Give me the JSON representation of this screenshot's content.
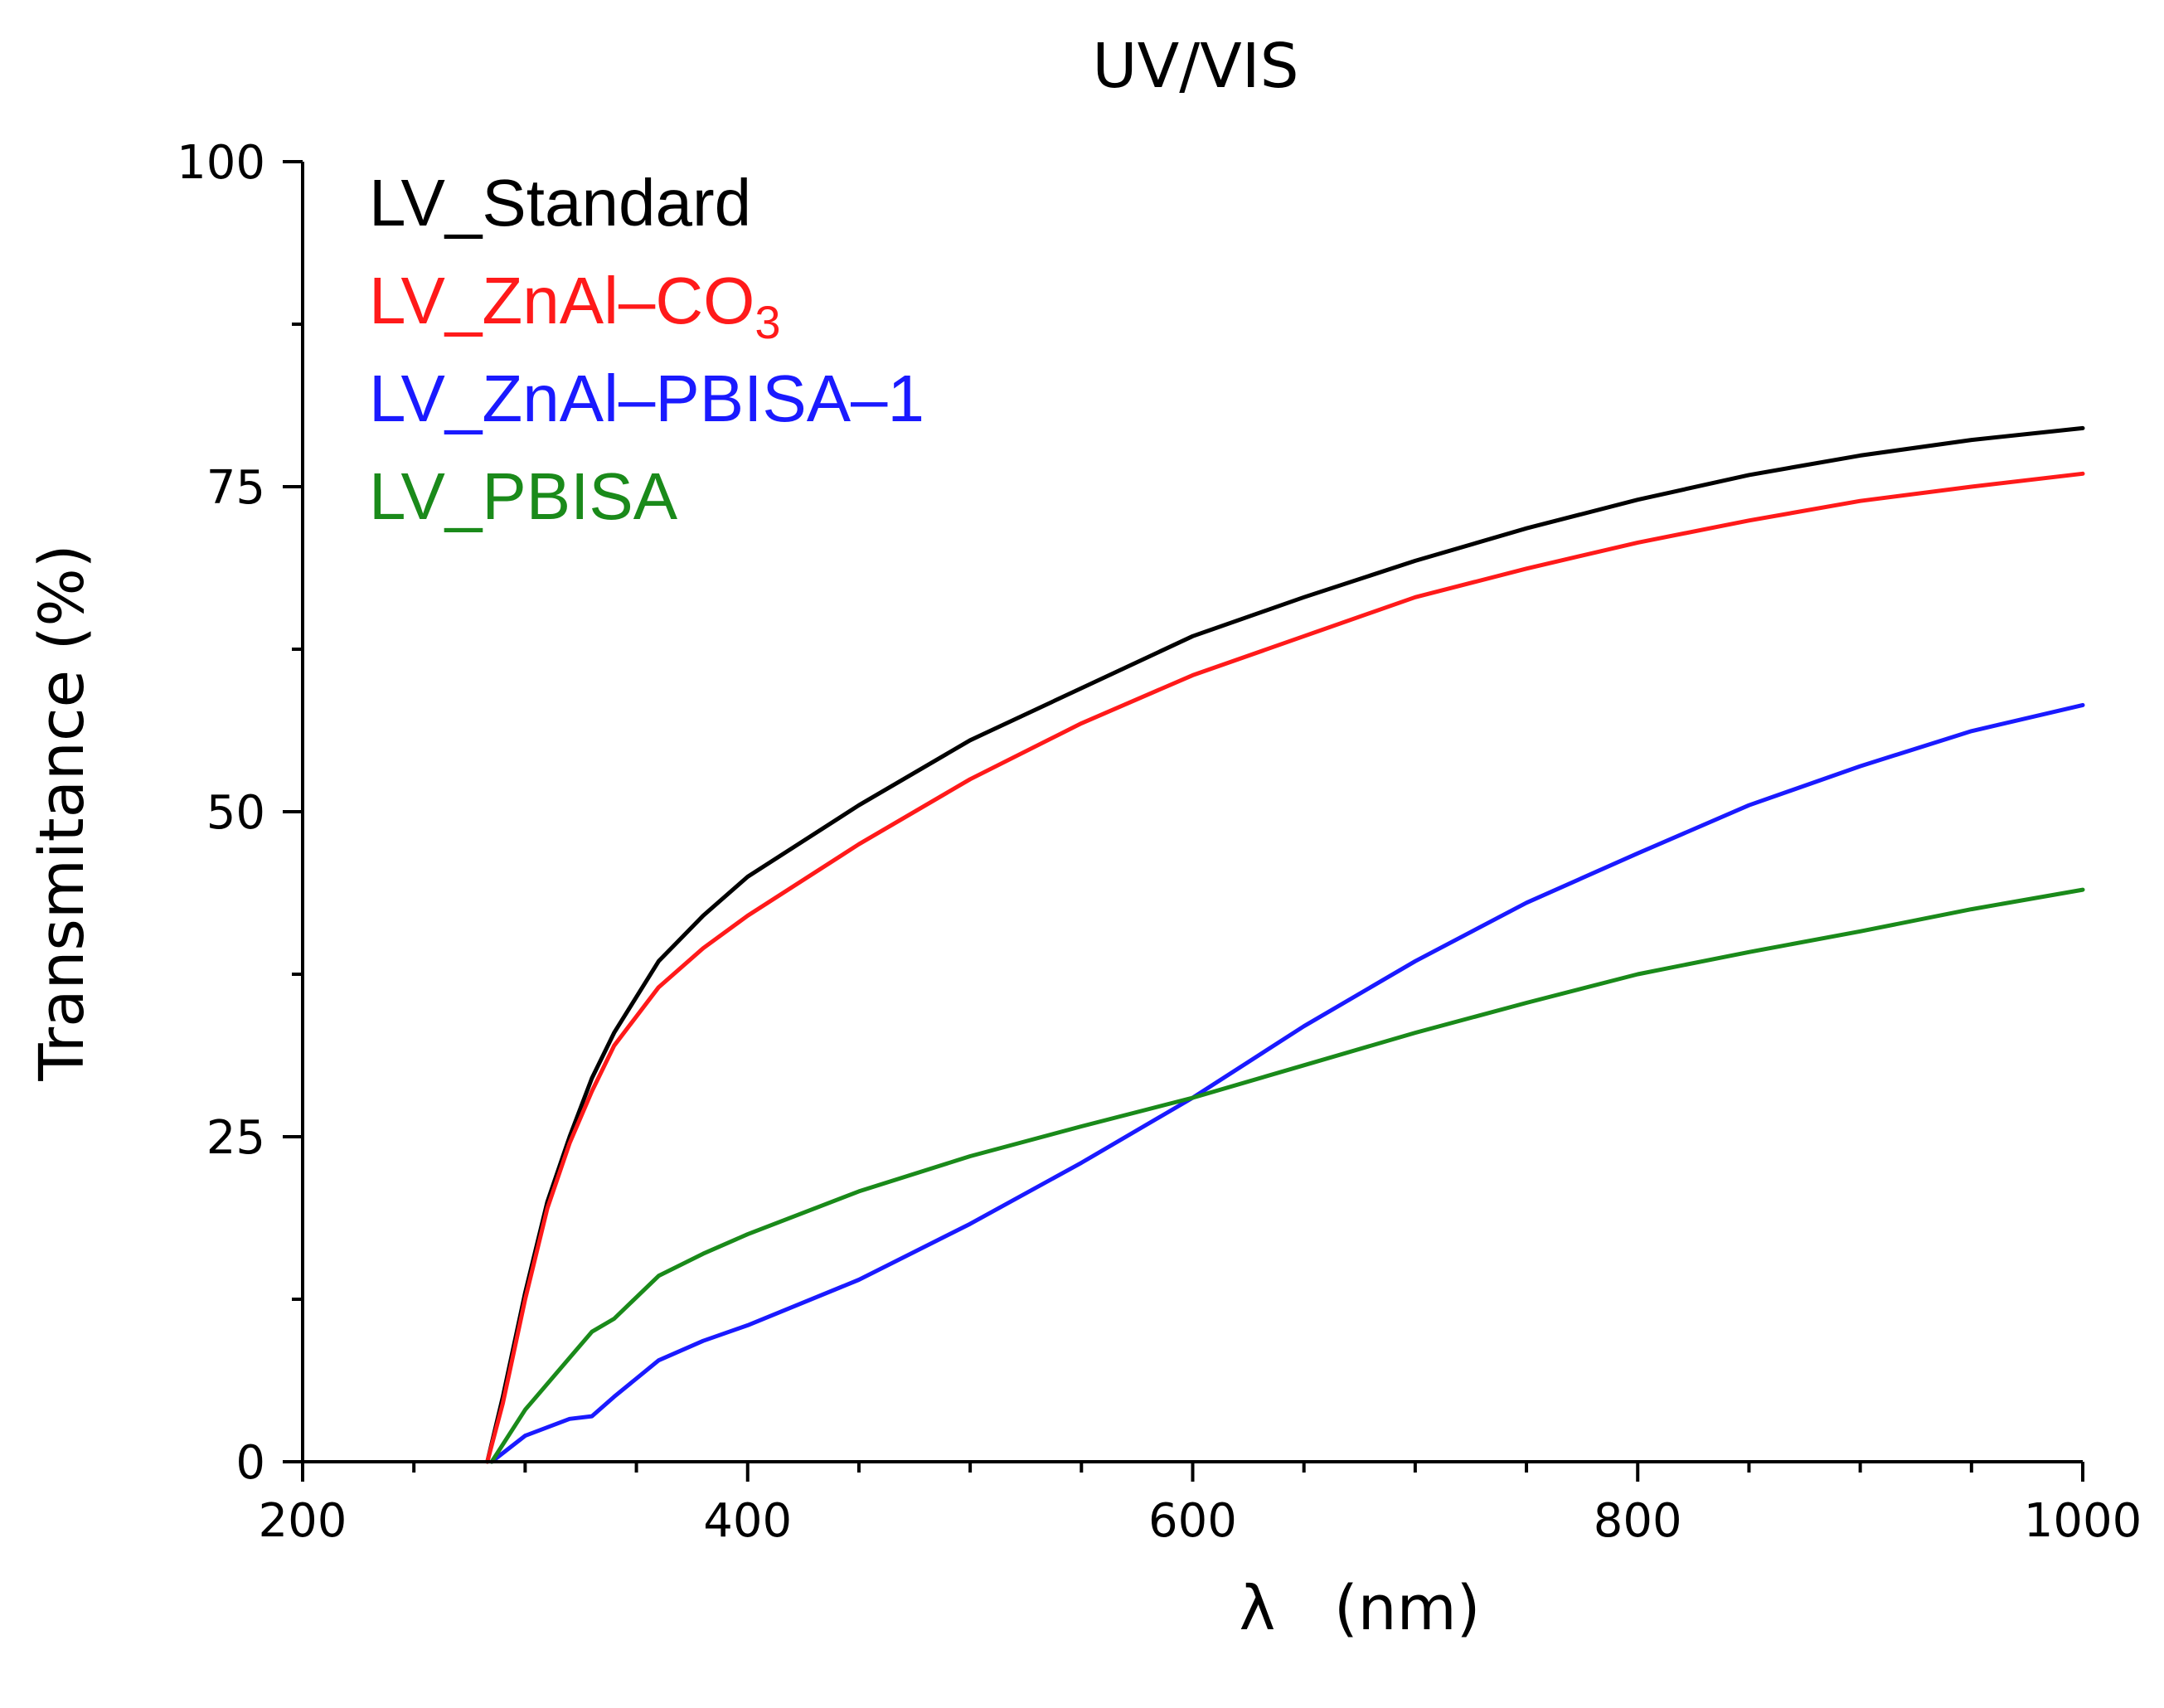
{
  "chart_data": {
    "type": "line",
    "title": "UV/VIS",
    "xlabel": "λ   (nm)",
    "ylabel": "Transmitance (%)",
    "xlim": [
      200,
      1000
    ],
    "ylim": [
      0,
      100
    ],
    "xticks": [
      200,
      400,
      600,
      800,
      1000
    ],
    "xtick_labels": [
      "200",
      "400",
      "600",
      "800",
      "1000"
    ],
    "yticks": [
      0,
      25,
      50,
      75,
      100
    ],
    "ytick_labels": [
      "0",
      "25",
      "50",
      "75",
      "100"
    ],
    "x_minor_step": 50,
    "y_minor_step": 12.5,
    "grid": false,
    "legend_position": "top-left",
    "series": [
      {
        "name": "LV_Standard",
        "color": "#000000",
        "x": [
          283,
          290,
          300,
          310,
          320,
          330,
          340,
          360,
          380,
          400,
          450,
          500,
          550,
          600,
          650,
          700,
          750,
          800,
          850,
          900,
          950,
          1000
        ],
        "values": [
          0,
          5,
          13,
          20,
          25,
          29.5,
          33,
          38.5,
          42,
          45,
          50.5,
          55.5,
          59.5,
          63.5,
          66.5,
          69.3,
          71.8,
          74,
          75.9,
          77.4,
          78.6,
          79.5
        ]
      },
      {
        "name": "LV_ZnAl–CO",
        "name_sub": "3",
        "color": "#ff1a1a",
        "x": [
          283,
          290,
          300,
          310,
          320,
          330,
          340,
          360,
          380,
          400,
          450,
          500,
          550,
          600,
          650,
          700,
          750,
          800,
          850,
          900,
          950,
          1000
        ],
        "values": [
          0,
          4.5,
          12.5,
          19.5,
          24.5,
          28.5,
          32,
          36.5,
          39.5,
          42,
          47.5,
          52.5,
          56.8,
          60.5,
          63.5,
          66.5,
          68.7,
          70.7,
          72.4,
          73.9,
          75,
          76
        ]
      },
      {
        "name": "LV_ZnAl–PBISA–1",
        "color": "#1a1aff",
        "x": [
          285,
          300,
          320,
          330,
          340,
          360,
          380,
          400,
          450,
          500,
          550,
          600,
          650,
          700,
          750,
          800,
          850,
          900,
          950,
          1000
        ],
        "values": [
          0,
          2,
          3.3,
          3.5,
          5,
          7.8,
          9.3,
          10.5,
          14,
          18.3,
          23,
          28,
          33.5,
          38.5,
          43,
          46.8,
          50.5,
          53.5,
          56.2,
          58.2
        ]
      },
      {
        "name": "LV_PBISA",
        "color": "#1a8a1a",
        "x": [
          285,
          300,
          320,
          330,
          340,
          360,
          380,
          400,
          450,
          500,
          550,
          600,
          650,
          700,
          750,
          800,
          850,
          900,
          950,
          1000
        ],
        "values": [
          0,
          4,
          8,
          10,
          11,
          14.3,
          16,
          17.5,
          20.8,
          23.5,
          25.8,
          28,
          30.5,
          33,
          35.3,
          37.5,
          39.2,
          40.8,
          42.5,
          44
        ]
      }
    ]
  }
}
